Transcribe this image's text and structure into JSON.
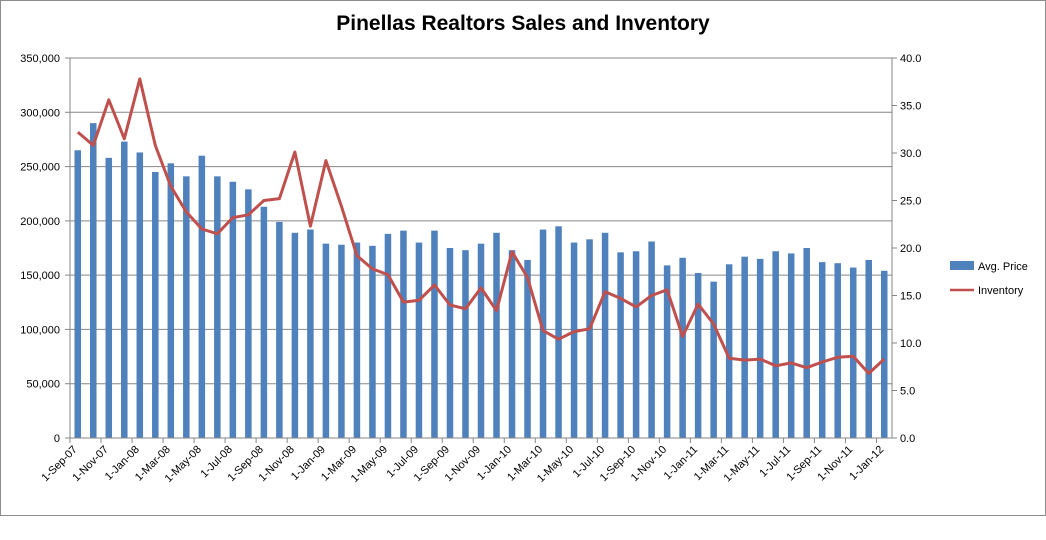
{
  "chart_data": {
    "type": "bar",
    "title": "Pinellas Realtors Sales and Inventory",
    "categories": [
      "Sep-07",
      "Oct-07",
      "Nov-07",
      "Dec-07",
      "Jan-08",
      "Feb-08",
      "Mar-08",
      "Apr-08",
      "May-08",
      "Jun-08",
      "Jul-08",
      "Aug-08",
      "Sep-08",
      "Oct-08",
      "Nov-08",
      "Dec-08",
      "Jan-09",
      "Feb-09",
      "Mar-09",
      "Apr-09",
      "May-09",
      "Jun-09",
      "Jul-09",
      "Aug-09",
      "Sep-09",
      "Oct-09",
      "Nov-09",
      "Dec-09",
      "Jan-10",
      "Feb-10",
      "Mar-10",
      "Apr-10",
      "May-10",
      "Jun-10",
      "Jul-10",
      "Aug-10",
      "Sep-10",
      "Oct-10",
      "Nov-10",
      "Dec-10",
      "Jan-11",
      "Feb-11",
      "Mar-11",
      "Apr-11",
      "May-11",
      "Jun-11",
      "Jul-11",
      "Aug-11",
      "Sep-11",
      "Oct-11",
      "Nov-11",
      "Dec-11",
      "Jan-12"
    ],
    "x_tick_labels": [
      "1-Sep-07",
      "1-Nov-07",
      "1-Jan-08",
      "1-Mar-08",
      "1-May-08",
      "1-Jul-08",
      "1-Sep-08",
      "1-Nov-08",
      "1-Jan-09",
      "1-Mar-09",
      "1-May-09",
      "1-Jul-09",
      "1-Sep-09",
      "1-Nov-09",
      "1-Jan-10",
      "1-Mar-10",
      "1-May-10",
      "1-Jul-10",
      "1-Sep-10",
      "1-Nov-10",
      "1-Jan-11",
      "1-Mar-11",
      "1-May-11",
      "1-Jul-11",
      "1-Sep-11",
      "1-Nov-11",
      "1-Jan-12"
    ],
    "series": [
      {
        "name": "Avg. Price",
        "type": "bar",
        "axis": "left",
        "color": "#4f81bd",
        "values": [
          265000,
          290000,
          258000,
          273000,
          263000,
          245000,
          253000,
          241000,
          260000,
          241000,
          236000,
          229000,
          213000,
          199000,
          189000,
          192000,
          179000,
          178000,
          180000,
          177000,
          188000,
          191000,
          180000,
          191000,
          175000,
          173000,
          179000,
          189000,
          173000,
          164000,
          192000,
          195000,
          180000,
          183000,
          189000,
          171000,
          172000,
          181000,
          159000,
          166000,
          152000,
          144000,
          160000,
          167000,
          165000,
          172000,
          170000,
          175000,
          162000,
          161000,
          157000,
          164000,
          154000
        ]
      },
      {
        "name": "Inventory",
        "type": "line",
        "axis": "right",
        "color": "#c0504d",
        "values": [
          32.2,
          30.8,
          35.6,
          31.5,
          37.8,
          30.8,
          26.5,
          23.8,
          22.0,
          21.5,
          23.2,
          23.5,
          25.0,
          25.2,
          30.1,
          22.3,
          29.2,
          24.4,
          19.2,
          17.8,
          17.2,
          14.3,
          14.5,
          16.1,
          14.0,
          13.6,
          15.8,
          13.4,
          19.6,
          16.9,
          11.3,
          10.4,
          11.2,
          11.5,
          15.4,
          14.7,
          13.8,
          15.0,
          15.6,
          10.7,
          14.1,
          12.0,
          8.4,
          8.2,
          8.3,
          7.6,
          7.9,
          7.4,
          8.0,
          8.5,
          8.6,
          6.8,
          8.3
        ]
      }
    ],
    "y_left": {
      "min": 0,
      "max": 350000,
      "ticks": [
        "0",
        "50,000",
        "100,000",
        "150,000",
        "200,000",
        "250,000",
        "300,000",
        "350,000"
      ]
    },
    "y_right": {
      "min": 0,
      "max": 40,
      "ticks": [
        "0.0",
        "5.0",
        "10.0",
        "15.0",
        "20.0",
        "25.0",
        "30.0",
        "35.0",
        "40.0"
      ]
    },
    "grid": true,
    "legend_position": "right"
  }
}
